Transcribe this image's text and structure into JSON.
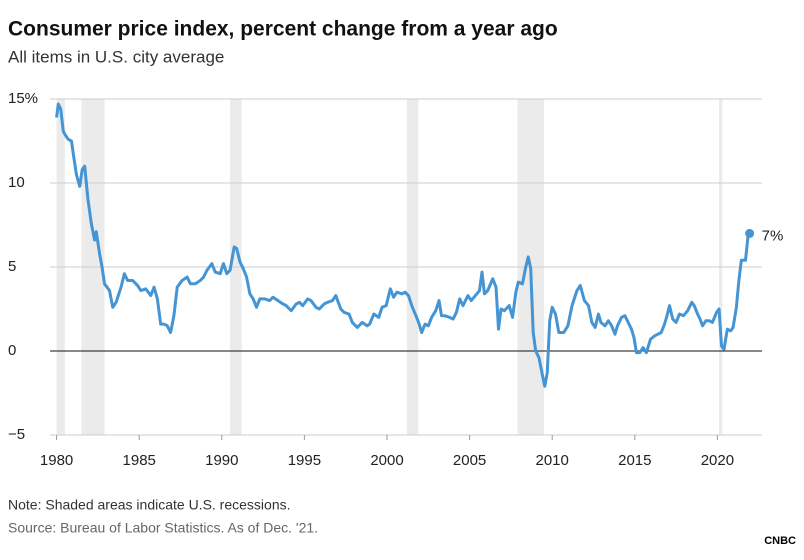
{
  "chart_data": {
    "type": "line",
    "title": "Consumer price index, percent change from a year ago",
    "subtitle": "All items in U.S. city average",
    "note": "Note: Shaded areas indicate U.S. recessions.",
    "source": "Source: Bureau of Labor Statistics. As of Dec. '21.",
    "brand": "CNBC",
    "annotation": "7%",
    "color": "#4594d3",
    "grid": true,
    "xlim": [
      1979.6,
      2022.7
    ],
    "ylim": [
      -5,
      15
    ],
    "xticks": [
      1980,
      1985,
      1990,
      1995,
      2000,
      2005,
      2010,
      2015,
      2020
    ],
    "yticks": [
      {
        "value": -5,
        "label": "−5"
      },
      0,
      5,
      10,
      {
        "value": 15,
        "label": "15%"
      }
    ],
    "recessions": [
      [
        1980.0,
        1980.5
      ],
      [
        1981.5,
        1982.9
      ],
      [
        1990.5,
        1991.2
      ],
      [
        2001.2,
        2001.9
      ],
      [
        2007.9,
        2009.5
      ],
      [
        2020.1,
        2020.3
      ]
    ],
    "x": [
      1980.0,
      1980.1,
      1980.25,
      1980.4,
      1980.5,
      1980.7,
      1980.9,
      1981.0,
      1981.2,
      1981.4,
      1981.55,
      1981.7,
      1981.9,
      1982.1,
      1982.3,
      1982.4,
      1982.6,
      1982.75,
      1982.9,
      1983.2,
      1983.4,
      1983.6,
      1983.9,
      1984.1,
      1984.3,
      1984.6,
      1984.9,
      1985.1,
      1985.4,
      1985.7,
      1985.9,
      1986.1,
      1986.3,
      1986.5,
      1986.7,
      1986.9,
      1987.1,
      1987.3,
      1987.6,
      1987.9,
      1988.1,
      1988.4,
      1988.7,
      1988.9,
      1989.1,
      1989.4,
      1989.6,
      1989.9,
      1990.1,
      1990.3,
      1990.5,
      1990.75,
      1990.9,
      1991.1,
      1991.3,
      1991.5,
      1991.7,
      1991.9,
      1992.1,
      1992.3,
      1992.6,
      1992.9,
      1993.1,
      1993.4,
      1993.7,
      1993.9,
      1994.2,
      1994.5,
      1994.7,
      1994.9,
      1995.2,
      1995.4,
      1995.7,
      1995.9,
      1996.2,
      1996.4,
      1996.7,
      1996.9,
      1997.2,
      1997.4,
      1997.7,
      1997.9,
      1998.2,
      1998.5,
      1998.8,
      1998.95,
      1999.2,
      1999.5,
      1999.7,
      1999.95,
      2000.2,
      2000.4,
      2000.6,
      2000.9,
      2001.1,
      2001.3,
      2001.5,
      2001.75,
      2001.95,
      2002.1,
      2002.3,
      2002.5,
      2002.7,
      2002.95,
      2003.15,
      2003.3,
      2003.5,
      2003.8,
      2004.0,
      2004.2,
      2004.4,
      2004.6,
      2004.9,
      2005.1,
      2005.35,
      2005.6,
      2005.75,
      2005.9,
      2006.1,
      2006.4,
      2006.6,
      2006.75,
      2006.9,
      2007.1,
      2007.4,
      2007.6,
      2007.8,
      2007.95,
      2008.2,
      2008.4,
      2008.55,
      2008.7,
      2008.85,
      2009.0,
      2009.2,
      2009.4,
      2009.55,
      2009.7,
      2009.85,
      2010.0,
      2010.2,
      2010.4,
      2010.7,
      2010.95,
      2011.2,
      2011.5,
      2011.7,
      2011.95,
      2012.2,
      2012.4,
      2012.6,
      2012.8,
      2012.95,
      2013.2,
      2013.4,
      2013.6,
      2013.8,
      2013.95,
      2014.2,
      2014.4,
      2014.6,
      2014.8,
      2014.95,
      2015.1,
      2015.3,
      2015.5,
      2015.7,
      2015.95,
      2016.2,
      2016.4,
      2016.6,
      2016.8,
      2016.95,
      2017.1,
      2017.3,
      2017.5,
      2017.7,
      2017.95,
      2018.2,
      2018.45,
      2018.6,
      2018.8,
      2018.95,
      2019.1,
      2019.3,
      2019.5,
      2019.7,
      2019.95,
      2020.1,
      2020.25,
      2020.4,
      2020.6,
      2020.8,
      2020.95,
      2021.15,
      2021.3,
      2021.45,
      2021.7,
      2021.85,
      2021.95
    ],
    "values": [
      13.9,
      14.7,
      14.4,
      13.1,
      12.9,
      12.6,
      12.5,
      11.8,
      10.5,
      9.8,
      10.8,
      11.0,
      9.0,
      7.6,
      6.6,
      7.1,
      5.8,
      5.0,
      4.0,
      3.6,
      2.6,
      2.9,
      3.8,
      4.6,
      4.2,
      4.2,
      3.9,
      3.6,
      3.7,
      3.3,
      3.8,
      3.1,
      1.6,
      1.6,
      1.5,
      1.1,
      2.1,
      3.8,
      4.2,
      4.4,
      4.0,
      4.0,
      4.2,
      4.4,
      4.8,
      5.2,
      4.7,
      4.6,
      5.2,
      4.6,
      4.8,
      6.2,
      6.1,
      5.3,
      4.9,
      4.4,
      3.4,
      3.1,
      2.6,
      3.1,
      3.1,
      3.0,
      3.2,
      3.0,
      2.8,
      2.7,
      2.4,
      2.8,
      2.9,
      2.7,
      3.1,
      3.0,
      2.6,
      2.5,
      2.8,
      2.9,
      3.0,
      3.3,
      2.5,
      2.3,
      2.2,
      1.7,
      1.4,
      1.7,
      1.5,
      1.6,
      2.2,
      2.0,
      2.6,
      2.7,
      3.7,
      3.2,
      3.5,
      3.4,
      3.5,
      3.3,
      2.7,
      2.1,
      1.6,
      1.1,
      1.6,
      1.5,
      2.0,
      2.4,
      3.0,
      2.1,
      2.1,
      2.0,
      1.9,
      2.3,
      3.1,
      2.7,
      3.3,
      3.0,
      3.3,
      3.6,
      4.7,
      3.4,
      3.6,
      4.3,
      3.8,
      1.3,
      2.5,
      2.4,
      2.7,
      2.0,
      3.5,
      4.1,
      4.0,
      5.0,
      5.6,
      4.9,
      1.1,
      0.0,
      -0.4,
      -1.4,
      -2.1,
      -1.3,
      1.8,
      2.6,
      2.2,
      1.1,
      1.1,
      1.5,
      2.7,
      3.6,
      3.9,
      3.0,
      2.7,
      1.7,
      1.4,
      2.2,
      1.7,
      1.5,
      1.8,
      1.5,
      1.0,
      1.5,
      2.0,
      2.1,
      1.7,
      1.3,
      0.8,
      -0.1,
      -0.1,
      0.2,
      -0.1,
      0.7,
      0.9,
      1.0,
      1.1,
      1.6,
      2.1,
      2.7,
      1.9,
      1.7,
      2.2,
      2.1,
      2.4,
      2.9,
      2.7,
      2.2,
      1.9,
      1.5,
      1.8,
      1.8,
      1.7,
      2.3,
      2.5,
      0.3,
      0.1,
      1.3,
      1.2,
      1.4,
      2.6,
      4.2,
      5.4,
      5.4,
      6.8,
      7.0
    ]
  }
}
